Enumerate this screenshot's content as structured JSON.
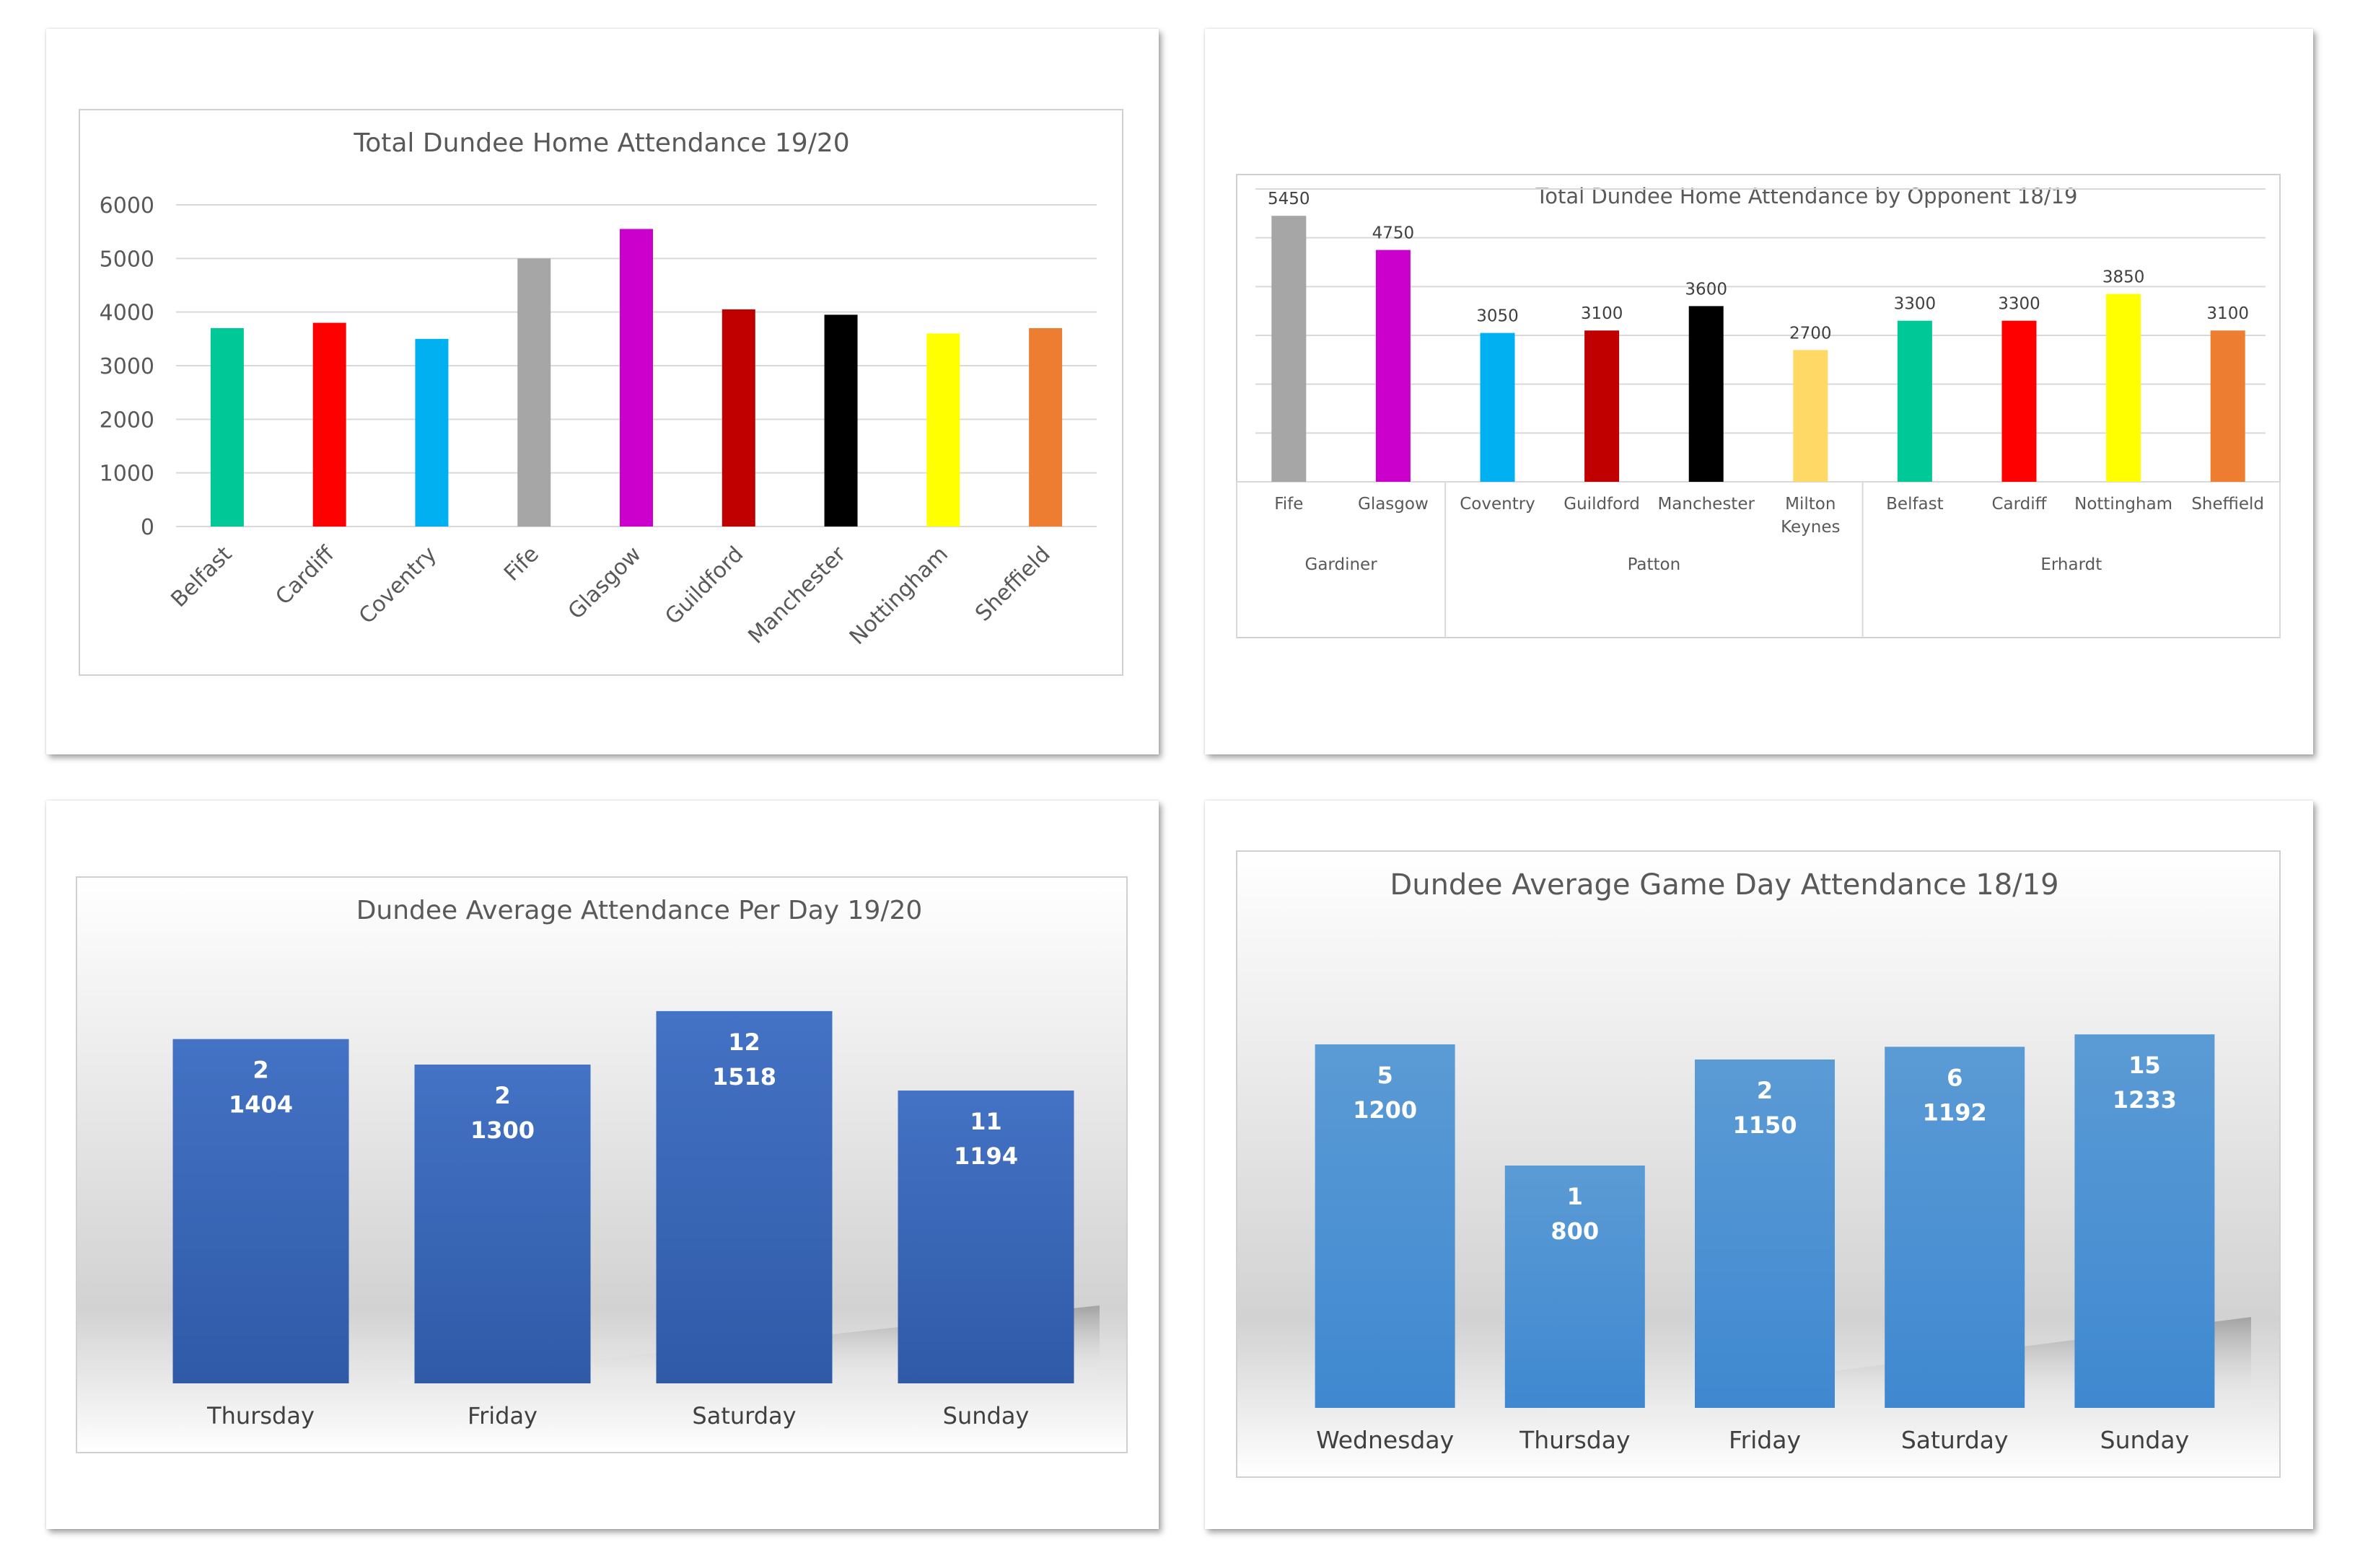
{
  "chart_data": [
    {
      "type": "bar",
      "title": "Total Dundee Home Attendance 19/20",
      "categories": [
        "Belfast",
        "Cardiff",
        "Coventry",
        "Fife",
        "Glasgow",
        "Guildford",
        "Manchester",
        "Nottingham",
        "Sheffield"
      ],
      "values": [
        3700,
        3800,
        3500,
        5000,
        5550,
        4050,
        3950,
        3600,
        3700
      ],
      "colors": [
        "#00c896",
        "#ff0000",
        "#00b0f0",
        "#a6a6a6",
        "#cc00cc",
        "#c00000",
        "#000000",
        "#ffff00",
        "#ed7d31"
      ],
      "yticks": [
        0,
        1000,
        2000,
        3000,
        4000,
        5000,
        6000
      ],
      "ylim": [
        0,
        6000
      ],
      "xlabel": "",
      "ylabel": "",
      "grid": true,
      "legend": "none"
    },
    {
      "type": "bar",
      "title": "Total Dundee Home Attendance by Opponent 18/19",
      "categories": [
        "Fife",
        "Glasgow",
        "Coventry",
        "Guildford",
        "Manchester",
        "Milton Keynes",
        "Belfast",
        "Cardiff",
        "Nottingham",
        "Sheffield"
      ],
      "category_lines": [
        [
          "Fife"
        ],
        [
          "Glasgow"
        ],
        [
          "Coventry"
        ],
        [
          "Guildford"
        ],
        [
          "Manchester"
        ],
        [
          "Milton",
          "Keynes"
        ],
        [
          "Belfast"
        ],
        [
          "Cardiff"
        ],
        [
          "Nottingham"
        ],
        [
          "Sheffield"
        ]
      ],
      "values": [
        5450,
        4750,
        3050,
        3100,
        3600,
        2700,
        3300,
        3300,
        3850,
        3100
      ],
      "data_labels": [
        "5450",
        "4750",
        "3050",
        "3100",
        "3600",
        "2700",
        "3300",
        "3300",
        "3850",
        "3100"
      ],
      "colors": [
        "#a6a6a6",
        "#cc00cc",
        "#00b0f0",
        "#c00000",
        "#000000",
        "#ffd966",
        "#00c896",
        "#ff0000",
        "#ffff00",
        "#ed7d31"
      ],
      "groups": [
        {
          "name": "Gardiner",
          "start": 0,
          "count": 2
        },
        {
          "name": "Patton",
          "start": 2,
          "count": 4
        },
        {
          "name": "Erhardt",
          "start": 6,
          "count": 4
        }
      ],
      "ylim": [
        0,
        6000
      ],
      "grid": true,
      "legend": "none"
    },
    {
      "type": "bar",
      "title": "Dundee Average Attendance Per Day 19/20",
      "categories": [
        "Thursday",
        "Friday",
        "Saturday",
        "Sunday"
      ],
      "values": [
        1404,
        1300,
        1518,
        1194
      ],
      "games": [
        "2",
        "2",
        "12",
        "11"
      ],
      "labels": [
        "1404",
        "1300",
        "1518",
        "1194"
      ],
      "ylim": [
        0,
        1600
      ],
      "legend": "none"
    },
    {
      "type": "bar",
      "title": "Dundee Average Game Day Attendance 18/19",
      "categories": [
        "Wednesday",
        "Thursday",
        "Friday",
        "Saturday",
        "Sunday"
      ],
      "values": [
        1200,
        800,
        1150,
        1192,
        1233
      ],
      "games": [
        "5",
        "1",
        "2",
        "6",
        "15"
      ],
      "labels": [
        "1200",
        "800",
        "1150",
        "1192",
        "1233"
      ],
      "ylim": [
        0,
        1300
      ],
      "legend": "none"
    }
  ]
}
